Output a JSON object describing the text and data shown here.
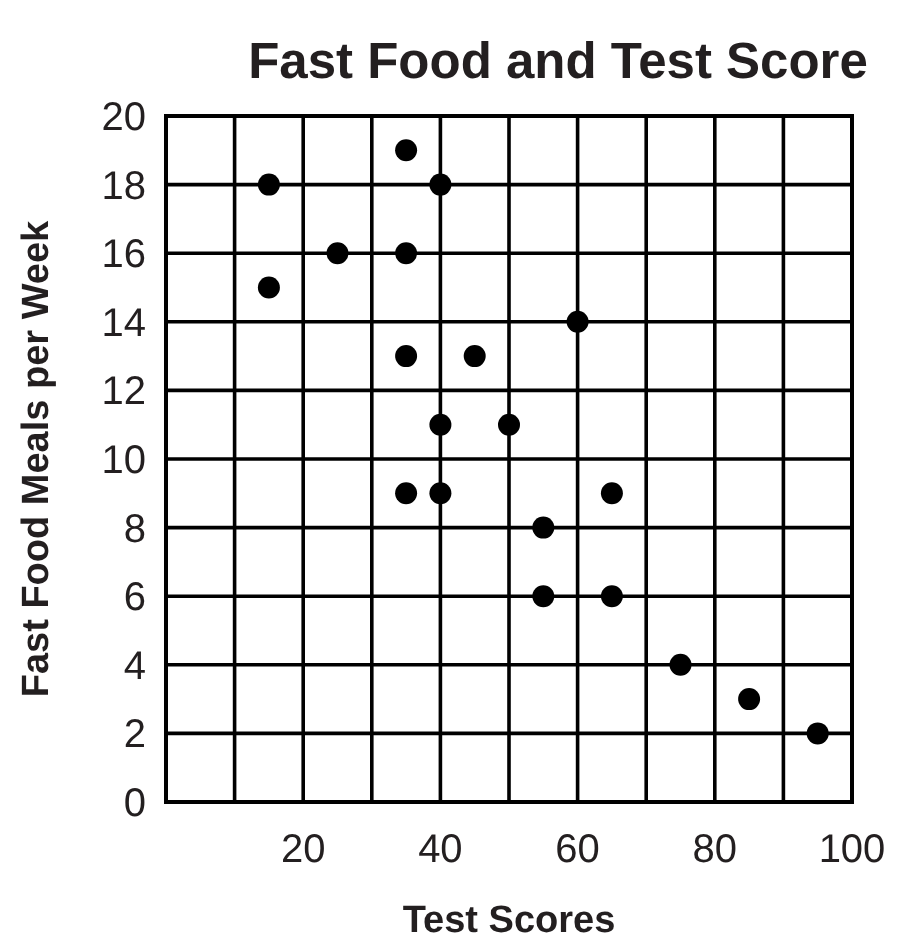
{
  "chart_data": {
    "type": "scatter",
    "title": "Fast Food and Test Score",
    "xlabel": "Test Scores",
    "ylabel": "Fast Food Meals per Week",
    "x": [
      15,
      15,
      25,
      35,
      35,
      35,
      35,
      40,
      40,
      40,
      45,
      50,
      55,
      55,
      60,
      65,
      65,
      75,
      85,
      95
    ],
    "values": [
      18,
      15,
      16,
      19,
      16,
      13,
      9,
      18,
      11,
      9,
      13,
      11,
      8,
      6,
      14,
      9,
      6,
      4,
      3,
      2
    ],
    "color": "#000000",
    "marker": "circle",
    "xlim": [
      0,
      100
    ],
    "xticks": [
      {
        "value": 0,
        "label": null
      },
      {
        "value": 10,
        "label": null
      },
      20,
      {
        "value": 30,
        "label": null
      },
      40,
      {
        "value": 50,
        "label": null
      },
      60,
      {
        "value": 70,
        "label": null
      },
      80,
      {
        "value": 90,
        "label": null
      },
      100
    ],
    "ylim": [
      0,
      20
    ],
    "yticks": [
      0,
      2,
      4,
      6,
      8,
      10,
      12,
      14,
      16,
      18,
      20
    ],
    "grid": true
  }
}
